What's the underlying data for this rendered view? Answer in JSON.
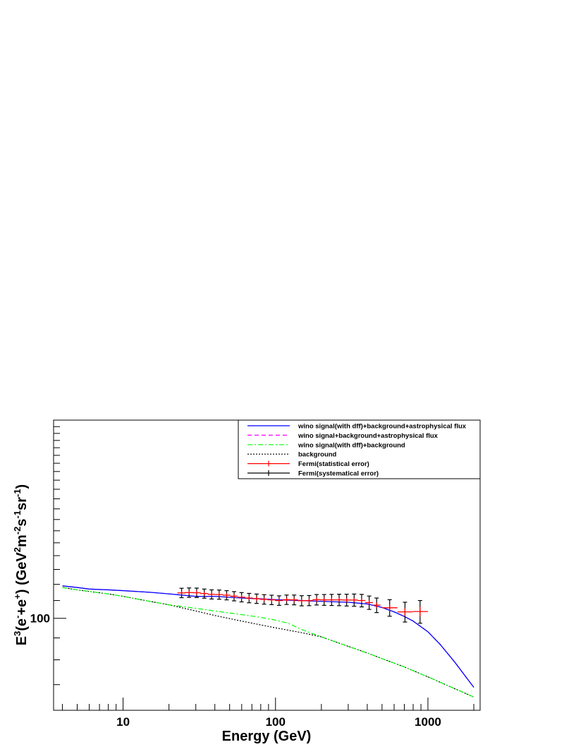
{
  "chart_data": {
    "type": "line",
    "xscale": "log",
    "yscale": "log",
    "xlim": [
      3.5,
      2200
    ],
    "ylim": [
      61,
      290
    ],
    "xlabel": "Energy (GeV)",
    "ylabel": {
      "pre": "E",
      "p1": "3",
      "m1": "(e",
      "p2": "-",
      "m2": "+e",
      "p3": "+",
      "m3": ") (GeV",
      "p4": "2",
      "m4": "m",
      "p5": "-2",
      "m5": "s",
      "p6": "-1",
      "m6": "sr",
      "p7": "-1",
      "post": ")"
    },
    "x_tick_labels": [
      {
        "value": 10,
        "label": "10"
      },
      {
        "value": 100,
        "label": "100"
      },
      {
        "value": 1000,
        "label": "1000"
      }
    ],
    "y_tick_labels": [
      {
        "value": 100,
        "label": "100"
      }
    ],
    "legend_placement": "top-right",
    "series": [
      {
        "name": "wino signal(with dff)+background+astrophysical flux",
        "style": "solid",
        "color": "#0000ff",
        "x": [
          4,
          5,
          6,
          8,
          10,
          15,
          20,
          30,
          40,
          60,
          80,
          100,
          150,
          200,
          300,
          400,
          500,
          600,
          700,
          800,
          1000,
          1200,
          1500,
          1800,
          2000
        ],
        "y": [
          119,
          118,
          117,
          116.5,
          116,
          115,
          114,
          112.5,
          112.5,
          111.5,
          111,
          110.5,
          110,
          109.5,
          109,
          108,
          106,
          103.5,
          101,
          98.5,
          93,
          87,
          79,
          72.5,
          69
        ]
      },
      {
        "name": "wino signal+background+astrophysical flux",
        "style": "dashed",
        "color": "#ff00ff",
        "x": [
          4,
          5,
          6,
          8,
          10,
          15,
          20,
          30,
          40,
          60,
          80,
          100,
          150,
          200,
          300,
          400,
          500,
          600,
          700,
          800,
          1000,
          1200,
          1500,
          1800,
          2000
        ],
        "y": [
          119,
          118,
          117,
          116.5,
          116,
          115,
          114,
          112.5,
          112.5,
          111.5,
          111,
          110.5,
          110,
          109.5,
          109,
          108,
          106,
          103.5,
          101,
          98.5,
          93,
          87,
          79,
          72.5,
          69
        ]
      },
      {
        "name": "wino signal(with dff)+background",
        "style": "dashdot",
        "color": "#00ff00",
        "x": [
          4,
          5,
          6,
          8,
          10,
          15,
          20,
          30,
          40,
          60,
          80,
          100,
          120,
          150,
          200,
          300,
          400,
          500,
          700,
          1000,
          1500,
          2000
        ],
        "y": [
          118,
          116.5,
          115.5,
          114,
          112.5,
          109.5,
          107.5,
          105.5,
          104,
          102,
          100.5,
          99,
          97.5,
          94,
          90.5,
          86,
          83,
          80.5,
          77,
          73,
          68.5,
          65.5
        ]
      },
      {
        "name": "background",
        "style": "dotted",
        "color": "#000000",
        "x": [
          4,
          5,
          6,
          8,
          10,
          15,
          20,
          30,
          40,
          60,
          80,
          100,
          150,
          200,
          300,
          400,
          500,
          700,
          1000,
          1500,
          2000
        ],
        "y": [
          118,
          116.5,
          115.5,
          114,
          112.5,
          109.5,
          107.5,
          104,
          101.5,
          98.5,
          96.5,
          95,
          92.5,
          90.5,
          86,
          83,
          80.5,
          77,
          73,
          68.5,
          65.5
        ]
      }
    ],
    "data_series": [
      {
        "name": "Fermi(statistical error)",
        "color": "#ff0000",
        "x": [
          24.2,
          27.1,
          30.4,
          34.1,
          38.1,
          42.7,
          47.8,
          53.5,
          59.9,
          67.1,
          75.2,
          84.2,
          94.3,
          105.6,
          118.3,
          132.5,
          148.4,
          166.2,
          186.1,
          208.5,
          233.5,
          261.5,
          292.9,
          328.0,
          367.4,
          411.5,
          460.8,
          561.2,
          707.1,
          888.0
        ],
        "y": [
          114.6,
          114.8,
          114.7,
          114.2,
          113.7,
          113.6,
          113.2,
          112.6,
          112.0,
          111.5,
          111.1,
          110.7,
          110.4,
          110.0,
          110.5,
          110.4,
          109.9,
          110.0,
          110.5,
          110.4,
          110.4,
          110.4,
          110.3,
          110.3,
          110.0,
          108.8,
          107.3,
          105.8,
          103.5,
          103.7
        ],
        "x_low": [
          22.7,
          25.4,
          28.6,
          32.1,
          36.0,
          40.2,
          45.0,
          50.5,
          56.5,
          63.2,
          70.8,
          79.3,
          88.8,
          99.4,
          111.3,
          124.6,
          139.6,
          156.4,
          175.1,
          196.2,
          219.8,
          246.1,
          275.6,
          308.7,
          345.8,
          387.3,
          435.9,
          500,
          631,
          794
        ],
        "x_high": [
          25.7,
          28.9,
          32.3,
          36.2,
          40.2,
          45.2,
          50.6,
          56.6,
          63.3,
          71.0,
          79.6,
          89.1,
          99.9,
          111.9,
          125.4,
          140.4,
          157.2,
          175.9,
          197.0,
          220.7,
          247.0,
          276.8,
          310.1,
          347.3,
          389.0,
          435.7,
          488.0,
          630,
          794,
          1000
        ],
        "stat_err": [
          1.2,
          1.2,
          1.2,
          1.2,
          1.2,
          1.2,
          1.2,
          1.2,
          1.2,
          1.2,
          1.2,
          1.2,
          1.2,
          1.2,
          1.2,
          1.2,
          1.2,
          1.2,
          1.2,
          1.2,
          1.2,
          1.2,
          1.2,
          1.2,
          1.2,
          1.3,
          1.5,
          1.8,
          2.3,
          2.7
        ]
      },
      {
        "name": "Fermi(systematical error)",
        "color": "#000000",
        "sys_err": [
          2.9,
          2.9,
          2.9,
          2.8,
          2.8,
          2.8,
          2.8,
          2.8,
          2.8,
          2.8,
          2.8,
          2.8,
          2.8,
          2.8,
          2.8,
          2.9,
          3.0,
          3.0,
          3.1,
          3.2,
          3.3,
          3.4,
          3.5,
          3.6,
          3.7,
          3.9,
          4.2,
          4.7,
          5.5,
          6.3
        ]
      }
    ]
  }
}
